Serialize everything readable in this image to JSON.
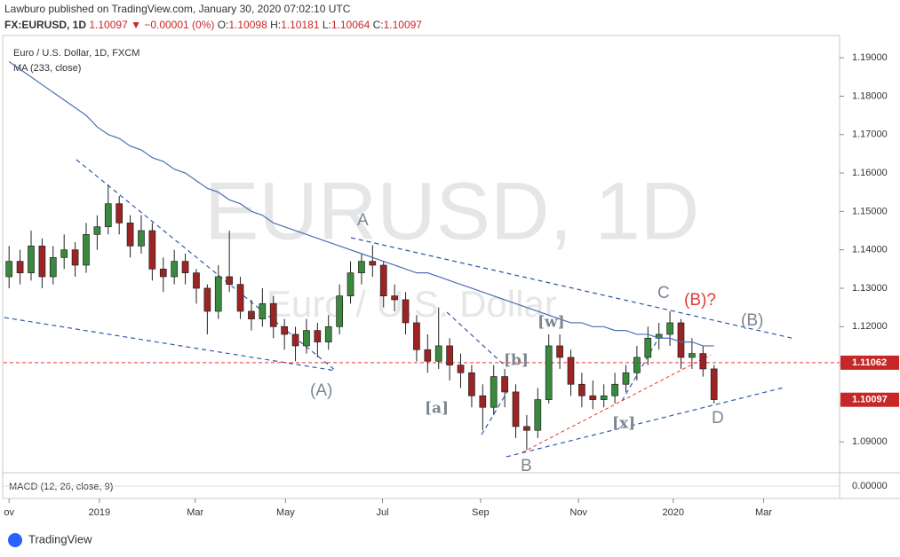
{
  "header": {
    "publisher": "Lawburo published on TradingView.com, January 30, 2020 07:02:10 UTC",
    "symbol": "FX:EURUSD, 1D",
    "price": "1.10097",
    "change": "▼ −0.00001 (0%)",
    "o_label": "O:",
    "o": "1.10098",
    "h_label": "H:",
    "h": "1.10181",
    "l_label": "L:",
    "l": "1.10064",
    "c_label": "C:",
    "c": "1.10097"
  },
  "watermark": {
    "title": "EURUSD, 1D",
    "subtitle": "Euro / U.S. Dollar"
  },
  "footer": {
    "brand": "TradingView"
  },
  "chart_data": {
    "type": "candlestick",
    "title": "Euro / U.S. Dollar, 1D, FXCM",
    "up_color": "#3a8a3e",
    "down_color": "#9c2424",
    "open": [
      1.133,
      1.137,
      1.134,
      1.141,
      1.133,
      1.138,
      1.14,
      1.136,
      1.144,
      1.146,
      1.152,
      1.147,
      1.141,
      1.145,
      1.135,
      1.133,
      1.137,
      1.134,
      1.13,
      1.124,
      1.133,
      1.131,
      1.124,
      1.122,
      1.126,
      1.12,
      1.118,
      1.115,
      1.119,
      1.116,
      1.12,
      1.128,
      1.134,
      1.137,
      1.136,
      1.128,
      1.127,
      1.121,
      1.114,
      1.111,
      1.115,
      1.11,
      1.108,
      1.102,
      1.099,
      1.107,
      1.103,
      1.094,
      1.093,
      1.101,
      1.115,
      1.112,
      1.105,
      1.102,
      1.101,
      1.102,
      1.105,
      1.108,
      1.112,
      1.117,
      1.118,
      1.121,
      1.112,
      1.113,
      1.109
    ],
    "high": [
      1.141,
      1.14,
      1.145,
      1.143,
      1.141,
      1.144,
      1.142,
      1.147,
      1.149,
      1.157,
      1.154,
      1.149,
      1.149,
      1.147,
      1.138,
      1.14,
      1.139,
      1.135,
      1.131,
      1.136,
      1.145,
      1.133,
      1.127,
      1.13,
      1.128,
      1.122,
      1.12,
      1.122,
      1.121,
      1.123,
      1.131,
      1.137,
      1.139,
      1.1412,
      1.137,
      1.131,
      1.129,
      1.123,
      1.118,
      1.125,
      1.117,
      1.113,
      1.11,
      1.105,
      1.11,
      1.109,
      1.105,
      1.097,
      1.104,
      1.118,
      1.118,
      1.114,
      1.108,
      1.106,
      1.105,
      1.108,
      1.11,
      1.115,
      1.12,
      1.121,
      1.124,
      1.122,
      1.117,
      1.115,
      1.11
    ],
    "low": [
      1.13,
      1.131,
      1.132,
      1.13,
      1.131,
      1.135,
      1.133,
      1.134,
      1.14,
      1.144,
      1.144,
      1.138,
      1.139,
      1.132,
      1.129,
      1.131,
      1.131,
      1.126,
      1.118,
      1.122,
      1.129,
      1.122,
      1.119,
      1.12,
      1.117,
      1.114,
      1.111,
      1.113,
      1.112,
      1.114,
      1.118,
      1.126,
      1.131,
      1.133,
      1.125,
      1.124,
      1.118,
      1.111,
      1.108,
      1.109,
      1.106,
      1.104,
      1.099,
      1.093,
      1.097,
      1.099,
      1.091,
      1.0879,
      1.091,
      1.1,
      1.109,
      1.102,
      1.099,
      1.0985,
      1.099,
      1.1,
      1.103,
      1.106,
      1.11,
      1.114,
      1.115,
      1.109,
      1.109,
      1.107,
      1.1
    ],
    "close": [
      1.137,
      1.134,
      1.141,
      1.133,
      1.138,
      1.14,
      1.136,
      1.144,
      1.146,
      1.152,
      1.147,
      1.141,
      1.145,
      1.135,
      1.133,
      1.137,
      1.134,
      1.13,
      1.124,
      1.133,
      1.131,
      1.124,
      1.122,
      1.126,
      1.12,
      1.118,
      1.115,
      1.119,
      1.116,
      1.12,
      1.128,
      1.134,
      1.137,
      1.136,
      1.128,
      1.127,
      1.121,
      1.114,
      1.111,
      1.115,
      1.11,
      1.108,
      1.102,
      1.099,
      1.107,
      1.103,
      1.094,
      1.093,
      1.101,
      1.115,
      1.112,
      1.105,
      1.102,
      1.101,
      1.102,
      1.105,
      1.108,
      1.112,
      1.117,
      1.118,
      1.121,
      1.112,
      1.113,
      1.109,
      1.101
    ],
    "series": [
      {
        "name": "MA (233, close)",
        "color": "#4a6fb5",
        "values": [
          1.189,
          1.187,
          1.185,
          1.183,
          1.181,
          1.179,
          1.177,
          1.175,
          1.172,
          1.17,
          1.169,
          1.167,
          1.166,
          1.164,
          1.163,
          1.161,
          1.16,
          1.158,
          1.156,
          1.155,
          1.153,
          1.152,
          1.15,
          1.149,
          1.147,
          1.146,
          1.145,
          1.144,
          1.143,
          1.142,
          1.141,
          1.14,
          1.139,
          1.138,
          1.137,
          1.136,
          1.135,
          1.134,
          1.134,
          1.133,
          1.132,
          1.131,
          1.13,
          1.129,
          1.128,
          1.127,
          1.126,
          1.125,
          1.124,
          1.123,
          1.122,
          1.121,
          1.121,
          1.12,
          1.12,
          1.119,
          1.119,
          1.118,
          1.118,
          1.117,
          1.117,
          1.116,
          1.116,
          1.115,
          1.115
        ]
      }
    ],
    "xlim": [
      -0.5,
      75.4
    ],
    "xticks": [
      {
        "value": 0.0,
        "label": "ov"
      },
      {
        "value": 8.2,
        "label": "2019"
      },
      {
        "value": 16.9,
        "label": "Mar"
      },
      {
        "value": 25.1,
        "label": "May"
      },
      {
        "value": 33.9,
        "label": "Jul"
      },
      {
        "value": 42.8,
        "label": "Sep"
      },
      {
        "value": 51.7,
        "label": "Nov"
      },
      {
        "value": 60.3,
        "label": "2020"
      },
      {
        "value": 68.5,
        "label": "Mar"
      }
    ],
    "ylim": [
      1.0822,
      1.1958
    ],
    "yticks": [
      {
        "value": 1.09,
        "label": "1.09000"
      },
      {
        "value": 1.1,
        "label": "1.10000"
      },
      {
        "value": 1.11,
        "label": "1.11000"
      },
      {
        "value": 1.12,
        "label": "1.12000"
      },
      {
        "value": 1.13,
        "label": "1.13000"
      },
      {
        "value": 1.14,
        "label": "1.14000"
      },
      {
        "value": 1.15,
        "label": "1.15000"
      },
      {
        "value": 1.16,
        "label": "1.16000"
      },
      {
        "value": 1.17,
        "label": "1.17000"
      },
      {
        "value": 1.18,
        "label": "1.18000"
      },
      {
        "value": 1.19,
        "label": "1.19000"
      }
    ],
    "price_marks": [
      {
        "value": 1.11062,
        "label": "1.11062"
      },
      {
        "value": 1.10097,
        "label": "1.10097"
      }
    ],
    "annotations": [
      "A",
      "(A)",
      "B",
      "C",
      "(B)?",
      "(B)",
      "D",
      "[a]",
      "[b]",
      "[w]",
      "[x]"
    ],
    "macd": {
      "label": "MACD (12, 26, close, 9)",
      "yticks": [
        {
          "value": 0,
          "label": "0.00000"
        }
      ]
    }
  }
}
